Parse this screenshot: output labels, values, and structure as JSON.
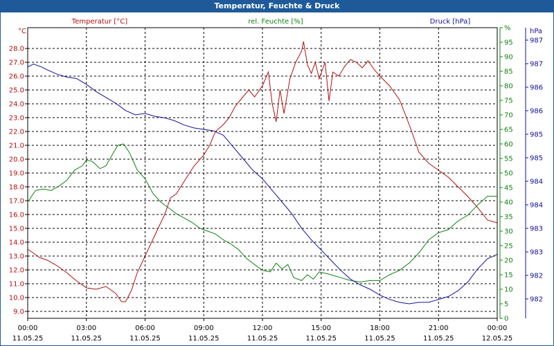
{
  "window": {
    "title": "Temperatur, Feuchte & Druck"
  },
  "colors": {
    "temperature": "#b01010",
    "humidity": "#108010",
    "pressure": "#10109a",
    "grid": "#000000",
    "titlebar": "#1e5a9a"
  },
  "chart_data": {
    "type": "line",
    "title": "Temperatur, Feuchte & Druck",
    "x_ticks": [
      {
        "time": "00:00",
        "date": "11.05.25"
      },
      {
        "time": "03:00",
        "date": "11.05.25"
      },
      {
        "time": "06:00",
        "date": "11.05.25"
      },
      {
        "time": "09:00",
        "date": "11.05.25"
      },
      {
        "time": "12:00",
        "date": "11.05.25"
      },
      {
        "time": "15:00",
        "date": "11.05.25"
      },
      {
        "time": "18:00",
        "date": "11.05.25"
      },
      {
        "time": "21:00",
        "date": "11.05.25"
      },
      {
        "time": "00:00",
        "date": "12.05.25"
      }
    ],
    "xlim": [
      0,
      24
    ],
    "axes": {
      "temperature": {
        "unit": "°C",
        "label": "Temperatur [°C]",
        "ylim": [
          8.5,
          29.5
        ],
        "ticks": [
          "9.0",
          "10.0",
          "11.0",
          "12.0",
          "13.0",
          "14.0",
          "15.0",
          "16.0",
          "17.0",
          "18.0",
          "19.0",
          "20.0",
          "21.0",
          "22.0",
          "23.0",
          "24.0",
          "25.0",
          "26.0",
          "27.0",
          "28.0"
        ]
      },
      "humidity": {
        "unit": "%",
        "label": "rel. Feuchte [%]",
        "ylim": [
          0,
          100
        ],
        "ticks": [
          "0",
          "5",
          "10",
          "15",
          "20",
          "25",
          "30",
          "35",
          "40",
          "45",
          "50",
          "55",
          "60",
          "65",
          "70",
          "75",
          "80",
          "85",
          "90",
          "95",
          "%"
        ]
      },
      "pressure": {
        "unit": "hPa",
        "ticks": [
          "982",
          "982",
          "983",
          "983",
          "984",
          "984",
          "985",
          "985",
          "986",
          "986",
          "987",
          "987"
        ]
      }
    },
    "series": [
      {
        "name": "Temperatur [°C]",
        "axis": "temperature",
        "points": [
          [
            0,
            13.5
          ],
          [
            0.3,
            13.2
          ],
          [
            0.6,
            12.9
          ],
          [
            1,
            12.7
          ],
          [
            1.5,
            12.3
          ],
          [
            2,
            11.8
          ],
          [
            2.5,
            11.2
          ],
          [
            3,
            10.7
          ],
          [
            3.5,
            10.6
          ],
          [
            4,
            10.8
          ],
          [
            4.5,
            10.3
          ],
          [
            4.8,
            9.7
          ],
          [
            5,
            9.7
          ],
          [
            5.3,
            10.5
          ],
          [
            5.6,
            11.8
          ],
          [
            6,
            13.0
          ],
          [
            6.5,
            14.5
          ],
          [
            7,
            16.0
          ],
          [
            7.3,
            17.2
          ],
          [
            7.6,
            17.5
          ],
          [
            8,
            18.4
          ],
          [
            8.5,
            19.5
          ],
          [
            9,
            20.3
          ],
          [
            9.3,
            21.0
          ],
          [
            9.6,
            22.0
          ],
          [
            10,
            22.5
          ],
          [
            10.3,
            23.0
          ],
          [
            10.6,
            23.8
          ],
          [
            11,
            24.5
          ],
          [
            11.3,
            25.0
          ],
          [
            11.6,
            24.5
          ],
          [
            12,
            25.3
          ],
          [
            12.3,
            26.3
          ],
          [
            12.5,
            24.0
          ],
          [
            12.7,
            22.7
          ],
          [
            12.9,
            25.0
          ],
          [
            13.1,
            23.3
          ],
          [
            13.4,
            25.8
          ],
          [
            13.7,
            27.0
          ],
          [
            14,
            27.8
          ],
          [
            14.1,
            28.5
          ],
          [
            14.3,
            26.8
          ],
          [
            14.5,
            26.2
          ],
          [
            14.7,
            27.0
          ],
          [
            14.9,
            25.8
          ],
          [
            15.2,
            27.0
          ],
          [
            15.4,
            24.2
          ],
          [
            15.6,
            26.3
          ],
          [
            15.9,
            26.0
          ],
          [
            16.2,
            26.7
          ],
          [
            16.5,
            27.2
          ],
          [
            16.8,
            27.0
          ],
          [
            17.1,
            26.6
          ],
          [
            17.4,
            27.1
          ],
          [
            17.7,
            26.5
          ],
          [
            18,
            26.0
          ],
          [
            18.5,
            25.3
          ],
          [
            19,
            24.3
          ],
          [
            19.5,
            22.5
          ],
          [
            20,
            20.5
          ],
          [
            20.5,
            19.7
          ],
          [
            21,
            19.2
          ],
          [
            21.5,
            18.7
          ],
          [
            22,
            18.0
          ],
          [
            22.5,
            17.3
          ],
          [
            23,
            16.5
          ],
          [
            23.5,
            15.6
          ],
          [
            24,
            15.4
          ]
        ]
      },
      {
        "name": "rel. Feuchte [%]",
        "axis": "humidity",
        "points": [
          [
            0,
            40
          ],
          [
            0.4,
            44
          ],
          [
            0.8,
            44.5
          ],
          [
            1.2,
            44
          ],
          [
            1.6,
            45.5
          ],
          [
            2,
            47.5
          ],
          [
            2.4,
            51
          ],
          [
            2.8,
            52.5
          ],
          [
            3,
            54.5
          ],
          [
            3.3,
            54
          ],
          [
            3.7,
            51.5
          ],
          [
            4,
            52.5
          ],
          [
            4.3,
            56
          ],
          [
            4.6,
            59.5
          ],
          [
            4.9,
            60
          ],
          [
            5.2,
            57
          ],
          [
            5.6,
            51
          ],
          [
            6,
            48
          ],
          [
            6.4,
            43
          ],
          [
            6.8,
            40
          ],
          [
            7.2,
            38
          ],
          [
            7.6,
            36
          ],
          [
            8,
            34.5
          ],
          [
            8.4,
            33
          ],
          [
            8.8,
            31
          ],
          [
            9.2,
            30
          ],
          [
            9.6,
            29
          ],
          [
            10,
            27
          ],
          [
            10.4,
            25.5
          ],
          [
            10.8,
            23.5
          ],
          [
            11.2,
            20.5
          ],
          [
            11.6,
            18.5
          ],
          [
            12,
            16.5
          ],
          [
            12.4,
            16
          ],
          [
            12.7,
            19
          ],
          [
            13,
            17
          ],
          [
            13.3,
            18.5
          ],
          [
            13.6,
            14
          ],
          [
            14,
            13
          ],
          [
            14.3,
            15
          ],
          [
            14.6,
            13.5
          ],
          [
            14.9,
            16
          ],
          [
            15.2,
            15.5
          ],
          [
            15.5,
            15
          ],
          [
            16,
            14
          ],
          [
            16.5,
            13
          ],
          [
            17,
            12.5
          ],
          [
            17.5,
            13
          ],
          [
            18,
            13
          ],
          [
            18.5,
            15
          ],
          [
            19,
            16.5
          ],
          [
            19.5,
            19
          ],
          [
            20,
            22.5
          ],
          [
            20.5,
            27
          ],
          [
            21,
            29.5
          ],
          [
            21.5,
            30.5
          ],
          [
            22,
            33.5
          ],
          [
            22.5,
            35.5
          ],
          [
            23,
            39
          ],
          [
            23.5,
            42
          ],
          [
            24,
            42
          ]
        ]
      },
      {
        "name": "Druck [hPa]",
        "axis": "pressure",
        "points": [
          [
            0,
            86.5
          ],
          [
            0.3,
            87.5
          ],
          [
            0.7,
            86.5
          ],
          [
            1,
            85.5
          ],
          [
            1.5,
            84
          ],
          [
            2,
            83
          ],
          [
            2.5,
            82.5
          ],
          [
            3,
            80.5
          ],
          [
            3.5,
            78
          ],
          [
            4,
            76
          ],
          [
            4.5,
            74
          ],
          [
            5,
            71.5
          ],
          [
            5.5,
            70
          ],
          [
            6,
            70.5
          ],
          [
            6.5,
            69.5
          ],
          [
            7,
            69
          ],
          [
            7.5,
            68
          ],
          [
            8,
            66.5
          ],
          [
            8.5,
            65.5
          ],
          [
            9,
            65
          ],
          [
            9.5,
            64.5
          ],
          [
            10,
            63
          ],
          [
            10.5,
            59
          ],
          [
            11,
            55
          ],
          [
            11.5,
            51
          ],
          [
            12,
            48
          ],
          [
            12.5,
            44
          ],
          [
            13,
            40
          ],
          [
            13.5,
            36
          ],
          [
            14,
            31
          ],
          [
            14.5,
            27
          ],
          [
            15,
            23.5
          ],
          [
            15.5,
            20
          ],
          [
            16,
            16.5
          ],
          [
            16.5,
            13.5
          ],
          [
            17,
            11.5
          ],
          [
            17.5,
            10
          ],
          [
            18,
            8
          ],
          [
            18.5,
            6.5
          ],
          [
            19,
            5.5
          ],
          [
            19.5,
            5
          ],
          [
            20,
            5.5
          ],
          [
            20.5,
            5.5
          ],
          [
            21,
            6.5
          ],
          [
            21.5,
            7.5
          ],
          [
            22,
            9.5
          ],
          [
            22.5,
            12.5
          ],
          [
            23,
            17
          ],
          [
            23.5,
            20.5
          ],
          [
            24,
            22
          ]
        ]
      }
    ]
  }
}
